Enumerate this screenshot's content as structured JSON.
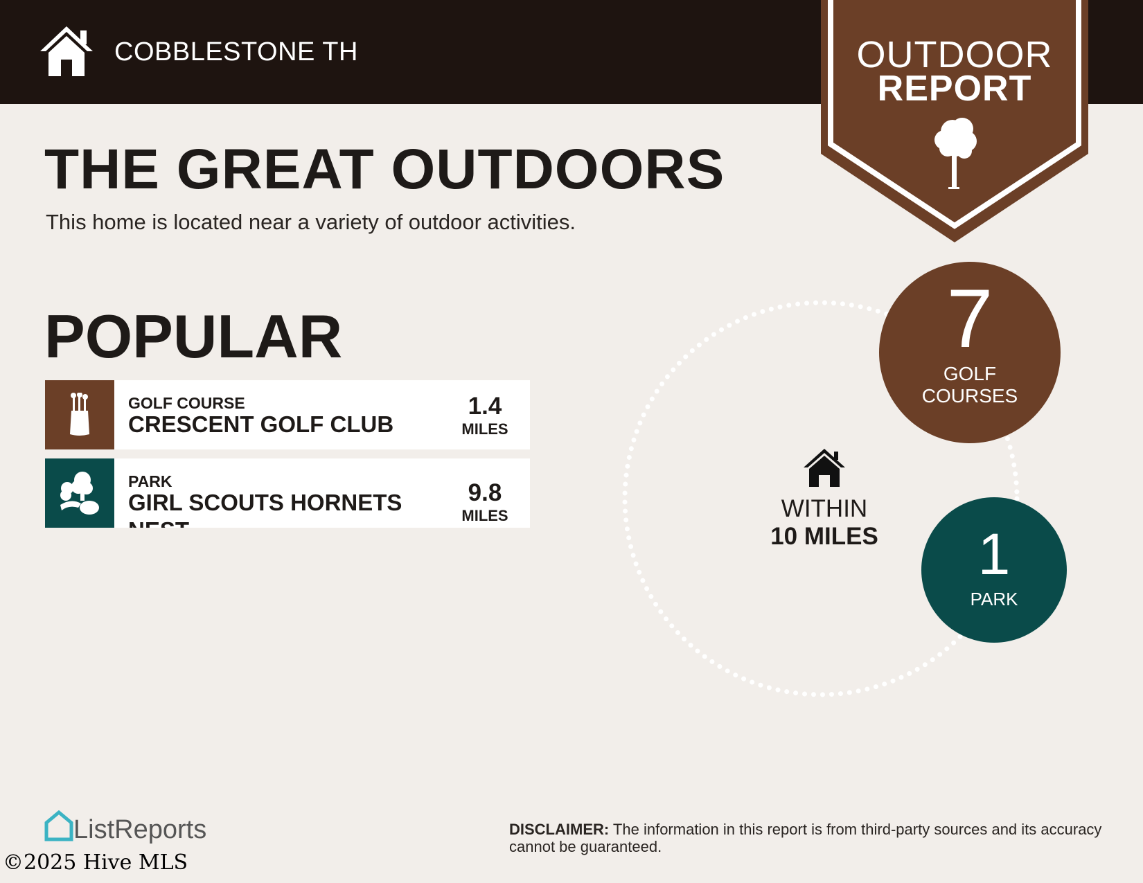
{
  "header": {
    "address": "COBBLESTONE TH",
    "icon": "home-icon"
  },
  "badge": {
    "line1": "OUTDOOR",
    "line2": "REPORT",
    "icon": "tree-icon"
  },
  "main": {
    "title": "THE GREAT OUTDOORS",
    "subtitle": "This home is located near a variety of outdoor activities.",
    "section": "POPULAR",
    "items": [
      {
        "category": "GOLF COURSE",
        "name": "CRESCENT GOLF CLUB",
        "distance": "1.4",
        "unit": "MILES",
        "icon": "golf-bag-icon",
        "color": "#6b3f27"
      },
      {
        "category": "PARK",
        "name": "GIRL SCOUTS HORNETS NEST",
        "distance": "9.8",
        "unit": "MILES",
        "icon": "park-trees-icon",
        "color": "#0a4b4a"
      }
    ]
  },
  "summary": {
    "within_line1": "WITHIN",
    "within_line2": "10 MILES",
    "stats": [
      {
        "count": "7",
        "label_line1": "GOLF",
        "label_line2": "COURSES",
        "color": "#6b3f27"
      },
      {
        "count": "1",
        "label_line1": "PARK",
        "color": "#0a4b4a"
      }
    ]
  },
  "footer": {
    "logo": "ListReports",
    "copyright": "©2025 Hive MLS",
    "disclaimer_label": "DISCLAIMER:",
    "disclaimer_text": " The information in this report is from third-party sources and its accuracy cannot be guaranteed."
  },
  "colors": {
    "header": "#1e1410",
    "brown": "#6b3f27",
    "teal": "#0a4b4a",
    "background": "#f2eeea",
    "logo_accent": "#3bb3c3"
  }
}
